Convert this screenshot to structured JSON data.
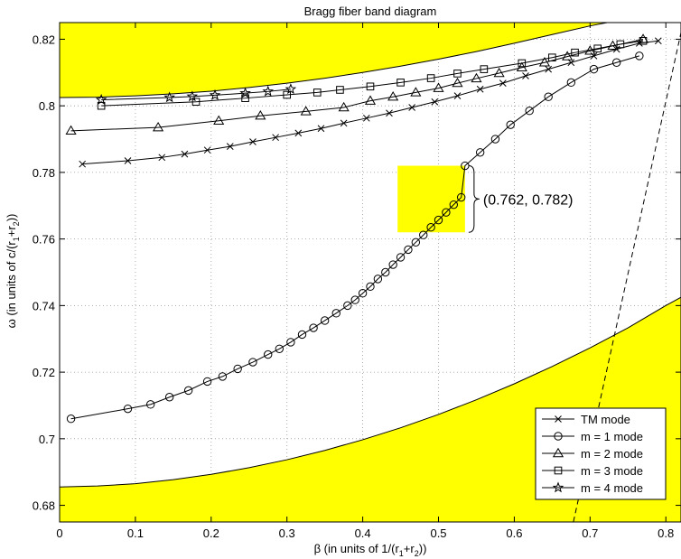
{
  "chart_data": {
    "type": "line",
    "title": "Bragg fiber band diagram",
    "xlabel": "β (in units of 1/(r",
    "xlabel_sub": "1",
    "xlabel_mid": "+r",
    "xlabel_sub2": "2",
    "xlabel_end": "))",
    "ylabel": "ω (in units of c/(r",
    "ylabel_sub": "1",
    "ylabel_mid": "+r",
    "ylabel_sub2": "2",
    "ylabel_end": "))",
    "xlim": [
      0,
      0.82
    ],
    "ylim": [
      0.675,
      0.825
    ],
    "xticks": [
      0,
      0.1,
      0.2,
      0.3,
      0.4,
      0.5,
      0.6,
      0.7,
      0.8
    ],
    "xtick_labels": [
      "0",
      "0.1",
      "0.2",
      "0.3",
      "0.4",
      "0.5",
      "0.6",
      "0.7",
      "0.8"
    ],
    "yticks": [
      0.68,
      0.7,
      0.72,
      0.74,
      0.76,
      0.78,
      0.8,
      0.82
    ],
    "ytick_labels": [
      "0.68",
      "0.7",
      "0.72",
      "0.74",
      "0.76",
      "0.78",
      "0.8",
      "0.82"
    ],
    "grid": true,
    "legend_position": "bottom-right",
    "colors": {
      "band_fill": "#ffff00",
      "line": "#000000",
      "grid": "#999999"
    },
    "bands": {
      "upper_boundary": {
        "x": [
          0,
          0.05,
          0.1,
          0.15,
          0.2,
          0.25,
          0.3,
          0.35,
          0.4,
          0.45,
          0.5,
          0.55,
          0.6,
          0.65,
          0.7,
          0.75,
          0.8,
          0.82
        ],
        "y": [
          0.8025,
          0.8026,
          0.803,
          0.8036,
          0.8044,
          0.8055,
          0.8068,
          0.8083,
          0.81,
          0.8119,
          0.814,
          0.8163,
          0.8188,
          0.8214,
          0.824,
          0.8262,
          0.828,
          0.8285
        ]
      },
      "lower_boundary": {
        "x": [
          0,
          0.05,
          0.1,
          0.15,
          0.2,
          0.25,
          0.3,
          0.35,
          0.4,
          0.45,
          0.5,
          0.55,
          0.6,
          0.65,
          0.7,
          0.75,
          0.8,
          0.82
        ],
        "y": [
          0.6855,
          0.6858,
          0.6865,
          0.6877,
          0.6893,
          0.6913,
          0.6937,
          0.6965,
          0.6997,
          0.7033,
          0.7073,
          0.7117,
          0.7165,
          0.7217,
          0.7273,
          0.7333,
          0.74,
          0.7425
        ]
      },
      "light_line": {
        "x": [
          0.678,
          0.82
        ],
        "y": [
          0.675,
          0.822
        ]
      }
    },
    "highlight": {
      "x_range": [
        0.446,
        0.535
      ],
      "y_range": [
        0.762,
        0.782
      ],
      "label": "(0.762, 0.782)"
    },
    "series": [
      {
        "name": "TM mode",
        "marker": "x",
        "x": [
          0.03,
          0.09,
          0.135,
          0.165,
          0.195,
          0.225,
          0.255,
          0.285,
          0.315,
          0.345,
          0.375,
          0.405,
          0.435,
          0.465,
          0.495,
          0.525,
          0.555,
          0.585,
          0.615,
          0.645,
          0.675,
          0.705,
          0.735,
          0.765,
          0.79
        ],
        "y": [
          0.7825,
          0.7835,
          0.7845,
          0.7855,
          0.7867,
          0.7878,
          0.7892,
          0.7905,
          0.7918,
          0.7932,
          0.7948,
          0.7963,
          0.7978,
          0.7995,
          0.8012,
          0.803,
          0.805,
          0.8068,
          0.809,
          0.811,
          0.813,
          0.815,
          0.817,
          0.8188,
          0.8195
        ]
      },
      {
        "name": "m = 1 mode",
        "marker": "o",
        "x": [
          0.015,
          0.09,
          0.12,
          0.145,
          0.17,
          0.195,
          0.215,
          0.235,
          0.255,
          0.275,
          0.29,
          0.305,
          0.32,
          0.335,
          0.35,
          0.365,
          0.38,
          0.39,
          0.4,
          0.41,
          0.42,
          0.43,
          0.44,
          0.45,
          0.46,
          0.47,
          0.48,
          0.49,
          0.5,
          0.51,
          0.52,
          0.53,
          0.535,
          0.555,
          0.575,
          0.595,
          0.62,
          0.645,
          0.675,
          0.705,
          0.735,
          0.765
        ],
        "y": [
          0.706,
          0.709,
          0.7103,
          0.7125,
          0.7145,
          0.7172,
          0.7187,
          0.721,
          0.723,
          0.7253,
          0.727,
          0.729,
          0.7313,
          0.7333,
          0.7355,
          0.7377,
          0.74,
          0.7417,
          0.7437,
          0.7457,
          0.748,
          0.75,
          0.7523,
          0.7545,
          0.7568,
          0.759,
          0.7612,
          0.7635,
          0.7657,
          0.768,
          0.7703,
          0.7725,
          0.782,
          0.786,
          0.79,
          0.7943,
          0.7985,
          0.8027,
          0.807,
          0.811,
          0.813,
          0.815
        ]
      },
      {
        "name": "m = 2 mode",
        "marker": "^",
        "x": [
          0.015,
          0.13,
          0.21,
          0.265,
          0.325,
          0.375,
          0.41,
          0.44,
          0.47,
          0.5,
          0.525,
          0.55,
          0.58,
          0.61,
          0.64,
          0.67,
          0.7,
          0.73,
          0.77
        ],
        "y": [
          0.7925,
          0.7935,
          0.7955,
          0.797,
          0.7983,
          0.7995,
          0.8015,
          0.8027,
          0.804,
          0.8053,
          0.8068,
          0.8082,
          0.8098,
          0.8115,
          0.813,
          0.8148,
          0.8165,
          0.818,
          0.82
        ]
      },
      {
        "name": "m = 3 mode",
        "marker": "s",
        "x": [
          0.055,
          0.18,
          0.245,
          0.3,
          0.34,
          0.37,
          0.41,
          0.45,
          0.49,
          0.525,
          0.56,
          0.61,
          0.65,
          0.68,
          0.71,
          0.74,
          0.77
        ],
        "y": [
          0.8,
          0.8012,
          0.8023,
          0.8033,
          0.804,
          0.8048,
          0.8058,
          0.807,
          0.8083,
          0.8097,
          0.811,
          0.8128,
          0.8145,
          0.816,
          0.8172,
          0.8185,
          0.8195
        ]
      },
      {
        "name": "m = 4 mode",
        "marker": "*",
        "x": [
          0.055,
          0.145,
          0.175,
          0.205,
          0.245,
          0.275,
          0.305
        ],
        "y": [
          0.8018,
          0.8025,
          0.8028,
          0.8032,
          0.8038,
          0.8043,
          0.805
        ]
      }
    ]
  }
}
